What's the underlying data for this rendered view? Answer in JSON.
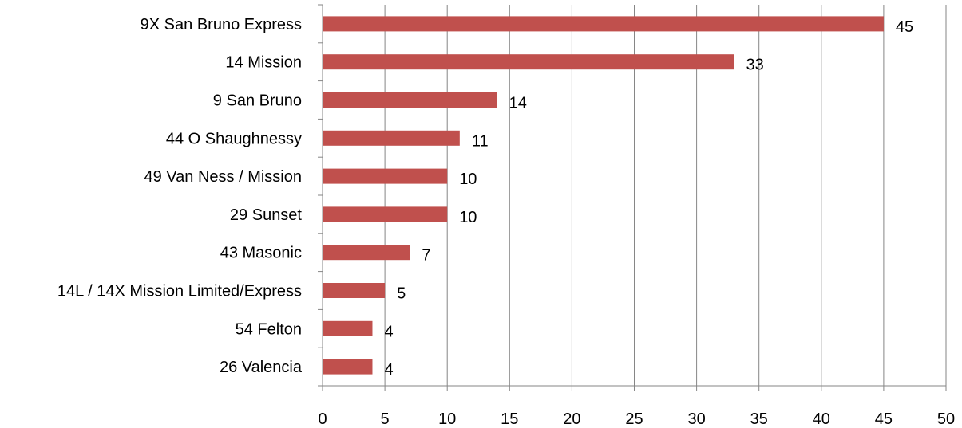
{
  "chart_data": {
    "type": "bar",
    "orientation": "horizontal",
    "categories": [
      "9X San Bruno Express",
      "14 Mission",
      "9 San Bruno",
      "44 O Shaughnessy",
      "49 Van Ness / Mission",
      "29 Sunset",
      "43 Masonic",
      "14L / 14X Mission Limited/Express",
      "54 Felton",
      "26 Valencia"
    ],
    "values": [
      45,
      33,
      14,
      11,
      10,
      10,
      7,
      5,
      4,
      4
    ],
    "xlim": [
      0,
      50
    ],
    "x_ticks": [
      0,
      5,
      10,
      15,
      20,
      25,
      30,
      35,
      40,
      45,
      50
    ],
    "grid": "vertical",
    "legend": "none",
    "data_labels": true,
    "colors": {
      "bar": "#c0504d",
      "grid": "#868686",
      "axis": "#868686",
      "text": "#000000"
    }
  }
}
